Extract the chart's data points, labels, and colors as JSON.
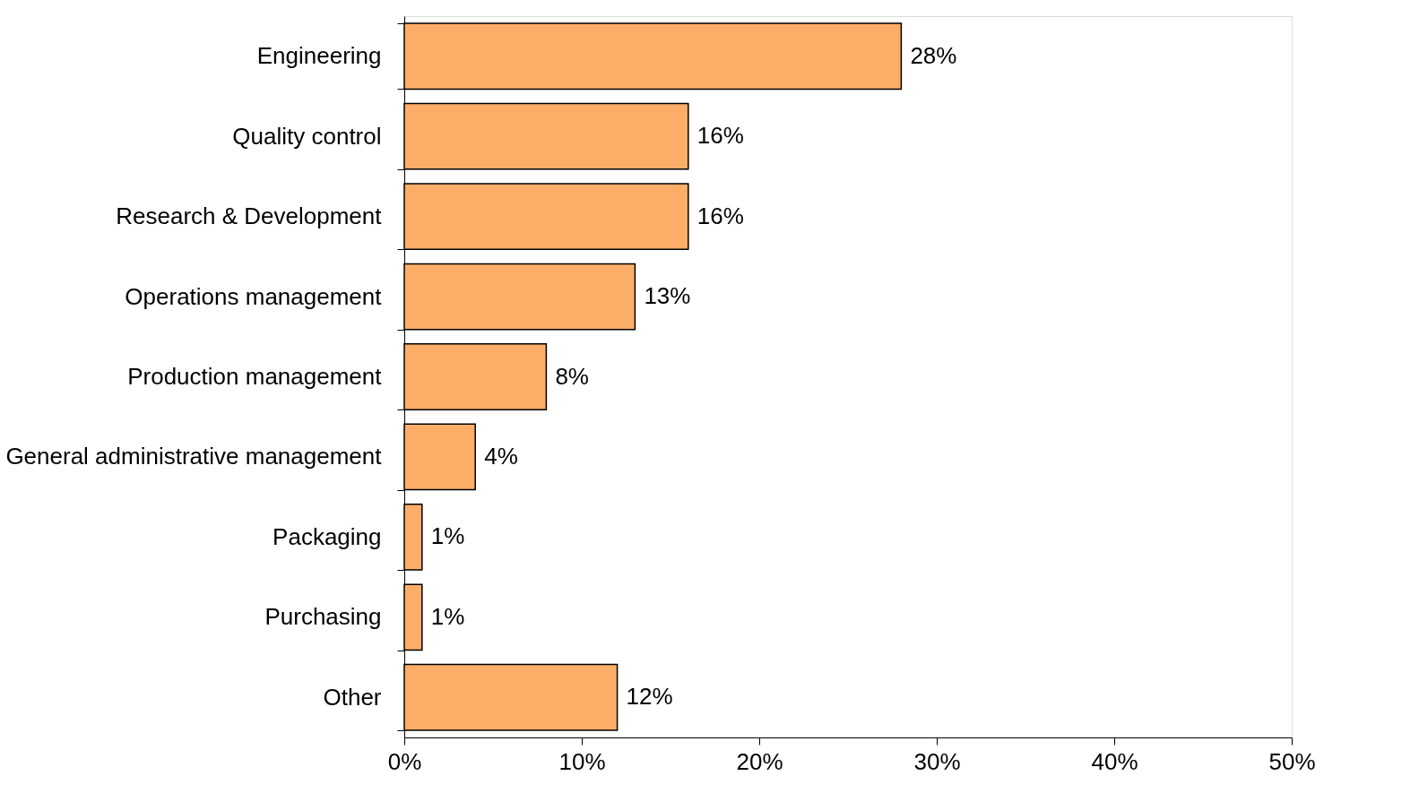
{
  "chart_data": {
    "type": "bar",
    "orientation": "horizontal",
    "categories": [
      "Engineering",
      "Quality control",
      "Research & Development",
      "Operations management",
      "Production management",
      "General administrative management",
      "Packaging",
      "Purchasing",
      "Other"
    ],
    "values": [
      28,
      16,
      16,
      13,
      8,
      4,
      1,
      1,
      12
    ],
    "value_labels": [
      "28%",
      "16%",
      "16%",
      "13%",
      "8%",
      "4%",
      "1%",
      "1%",
      "12%"
    ],
    "color": "#fcae68",
    "xlim": [
      0,
      50
    ],
    "xticks": [
      {
        "value": 0,
        "label": "0%"
      },
      {
        "value": 10,
        "label": "10%"
      },
      {
        "value": 20,
        "label": "20%"
      },
      {
        "value": 30,
        "label": "30%"
      },
      {
        "value": 40,
        "label": "40%"
      },
      {
        "value": 50,
        "label": "50%"
      }
    ],
    "grid": false
  }
}
